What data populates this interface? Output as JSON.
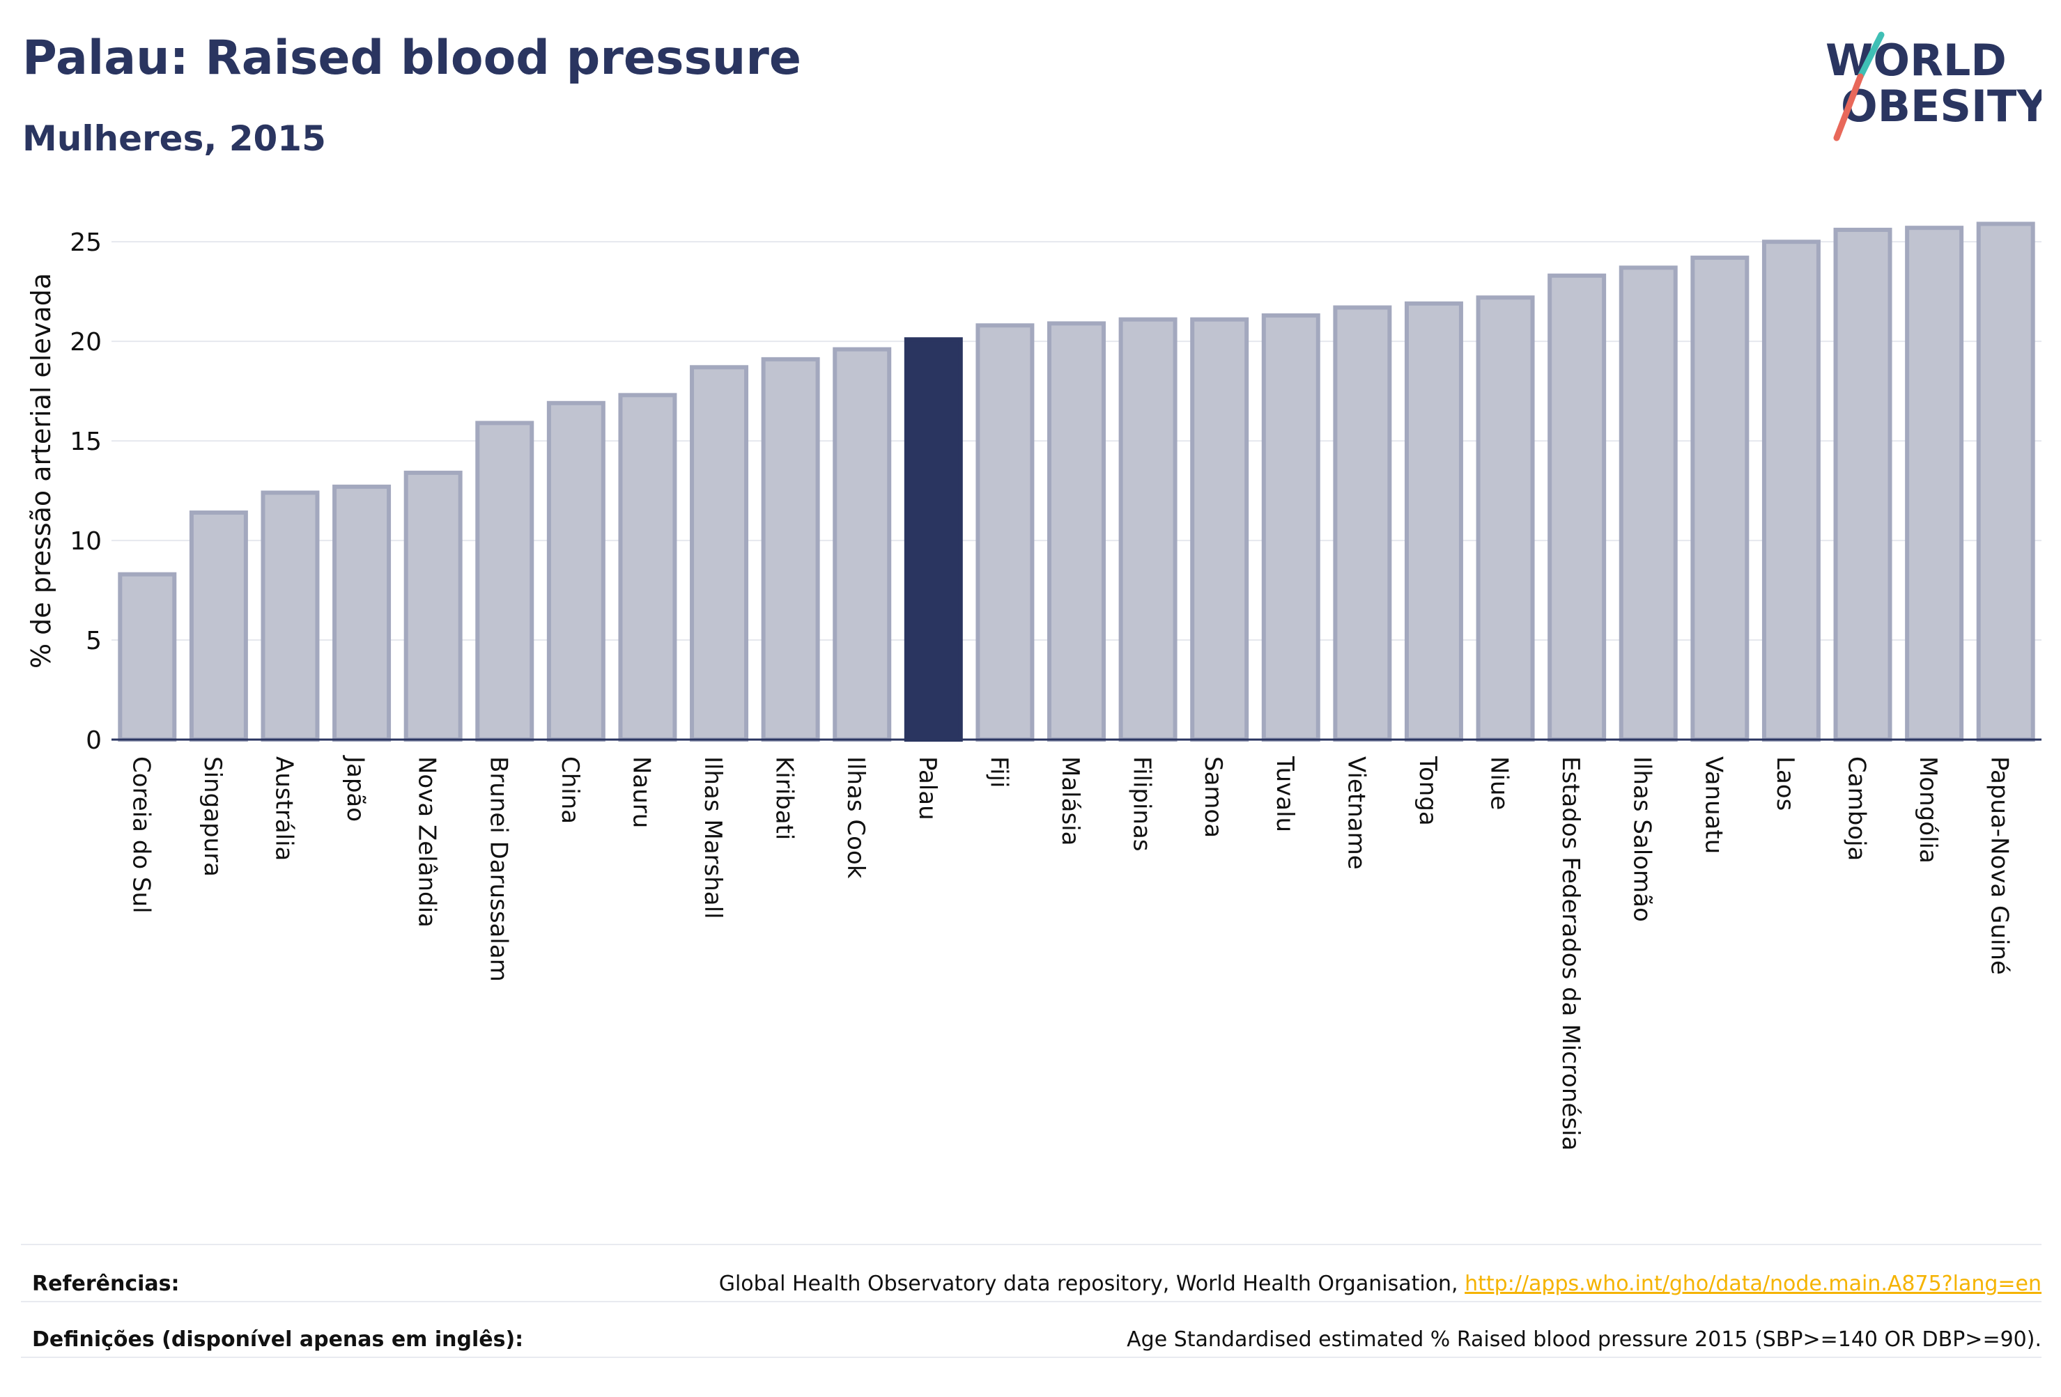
{
  "header": {
    "title": "Palau: Raised blood pressure",
    "subtitle": "Mulheres, 2015",
    "logo_line1": "WORLD",
    "logo_line2": "OBESITY"
  },
  "chart_data": {
    "type": "bar",
    "title": "Palau: Raised blood pressure",
    "subtitle": "Mulheres, 2015",
    "ylabel": "% de pressão arterial elevada",
    "xlabel": "",
    "ylim": [
      0,
      27
    ],
    "yticks": [
      0,
      5,
      10,
      15,
      20,
      25
    ],
    "grid": true,
    "highlight": "Palau",
    "colors": {
      "bar": "#c0c3d0",
      "bar_edge": "#a3a8be",
      "highlight": "#2a3560",
      "grid": "#e6e8ee"
    },
    "categories": [
      "Coreia do Sul",
      "Singapura",
      "Austrália",
      "Japão",
      "Nova Zelândia",
      "Brunei Darussalam",
      "China",
      "Nauru",
      "Ilhas Marshall",
      "Kiribati",
      "Ilhas Cook",
      "Palau",
      "Fiji",
      "Malásia",
      "Filipinas",
      "Samoa",
      "Tuvalu",
      "Vietname",
      "Tonga",
      "Niue",
      "Estados Federados da Micronésia",
      "Ilhas Salomão",
      "Vanuatu",
      "Laos",
      "Camboja",
      "Mongólia",
      "Papua-Nova Guiné"
    ],
    "values": [
      8.3,
      11.4,
      12.4,
      12.7,
      13.4,
      15.9,
      16.9,
      17.3,
      18.7,
      19.1,
      19.6,
      20.1,
      20.8,
      20.9,
      21.1,
      21.1,
      21.3,
      21.7,
      21.9,
      22.2,
      23.3,
      23.7,
      24.2,
      25.0,
      25.6,
      25.7,
      25.9
    ]
  },
  "references": {
    "label": "Referências:",
    "text": "Global Health Observatory data repository, World Health Organisation,",
    "link": "http://apps.who.int/gho/data/node.main.A875?lang=en"
  },
  "definitions": {
    "label": "Definições (disponível apenas em inglês):",
    "text": "Age Standardised estimated % Raised blood pressure 2015 (SBP>=140 OR DBP>=90)."
  }
}
